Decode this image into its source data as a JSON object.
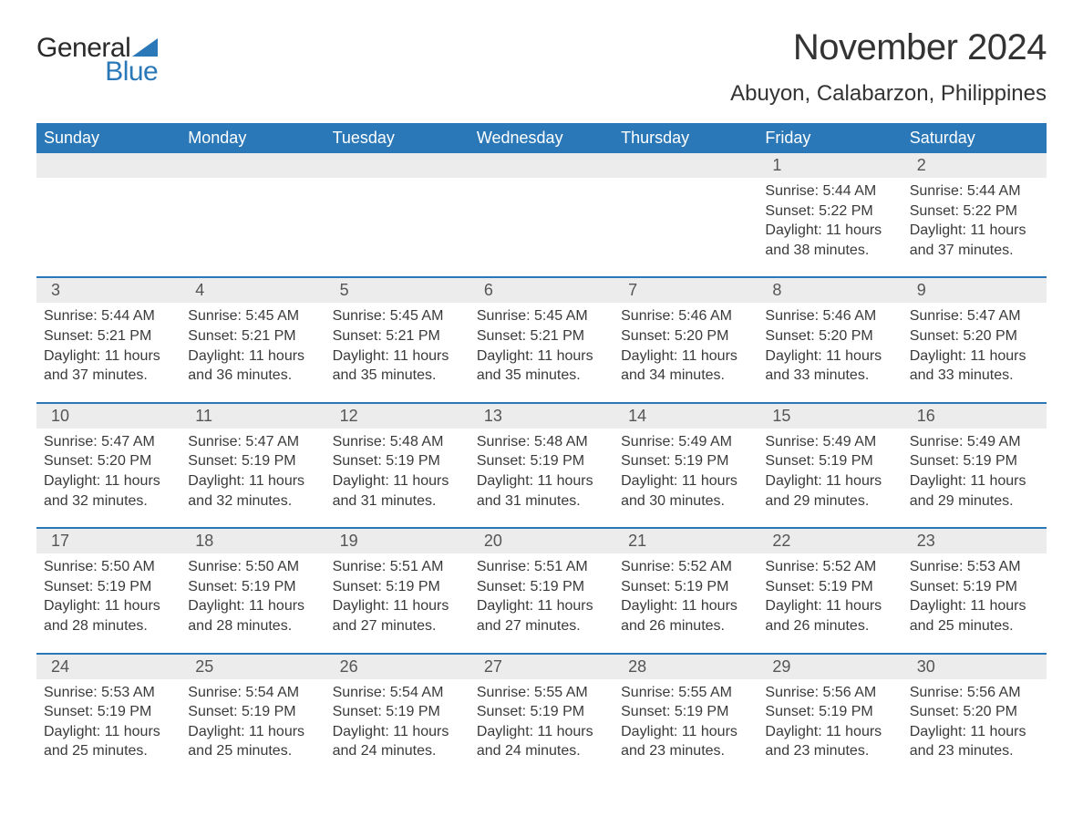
{
  "logo": {
    "text1": "General",
    "text2": "Blue",
    "sail_color": "#2a78b8"
  },
  "title": "November 2024",
  "location": "Abuyon, Calabarzon, Philippines",
  "colors": {
    "header_bg": "#2a78b8",
    "header_text": "#ffffff",
    "daynum_bg": "#ececec",
    "week_border": "#2a78b8",
    "body_text": "#3a3a3a"
  },
  "day_headers": [
    "Sunday",
    "Monday",
    "Tuesday",
    "Wednesday",
    "Thursday",
    "Friday",
    "Saturday"
  ],
  "weeks": [
    [
      {
        "empty": true
      },
      {
        "empty": true
      },
      {
        "empty": true
      },
      {
        "empty": true
      },
      {
        "empty": true
      },
      {
        "n": "1",
        "sunrise": "5:44 AM",
        "sunset": "5:22 PM",
        "daylight": "11 hours and 38 minutes."
      },
      {
        "n": "2",
        "sunrise": "5:44 AM",
        "sunset": "5:22 PM",
        "daylight": "11 hours and 37 minutes."
      }
    ],
    [
      {
        "n": "3",
        "sunrise": "5:44 AM",
        "sunset": "5:21 PM",
        "daylight": "11 hours and 37 minutes."
      },
      {
        "n": "4",
        "sunrise": "5:45 AM",
        "sunset": "5:21 PM",
        "daylight": "11 hours and 36 minutes."
      },
      {
        "n": "5",
        "sunrise": "5:45 AM",
        "sunset": "5:21 PM",
        "daylight": "11 hours and 35 minutes."
      },
      {
        "n": "6",
        "sunrise": "5:45 AM",
        "sunset": "5:21 PM",
        "daylight": "11 hours and 35 minutes."
      },
      {
        "n": "7",
        "sunrise": "5:46 AM",
        "sunset": "5:20 PM",
        "daylight": "11 hours and 34 minutes."
      },
      {
        "n": "8",
        "sunrise": "5:46 AM",
        "sunset": "5:20 PM",
        "daylight": "11 hours and 33 minutes."
      },
      {
        "n": "9",
        "sunrise": "5:47 AM",
        "sunset": "5:20 PM",
        "daylight": "11 hours and 33 minutes."
      }
    ],
    [
      {
        "n": "10",
        "sunrise": "5:47 AM",
        "sunset": "5:20 PM",
        "daylight": "11 hours and 32 minutes."
      },
      {
        "n": "11",
        "sunrise": "5:47 AM",
        "sunset": "5:19 PM",
        "daylight": "11 hours and 32 minutes."
      },
      {
        "n": "12",
        "sunrise": "5:48 AM",
        "sunset": "5:19 PM",
        "daylight": "11 hours and 31 minutes."
      },
      {
        "n": "13",
        "sunrise": "5:48 AM",
        "sunset": "5:19 PM",
        "daylight": "11 hours and 31 minutes."
      },
      {
        "n": "14",
        "sunrise": "5:49 AM",
        "sunset": "5:19 PM",
        "daylight": "11 hours and 30 minutes."
      },
      {
        "n": "15",
        "sunrise": "5:49 AM",
        "sunset": "5:19 PM",
        "daylight": "11 hours and 29 minutes."
      },
      {
        "n": "16",
        "sunrise": "5:49 AM",
        "sunset": "5:19 PM",
        "daylight": "11 hours and 29 minutes."
      }
    ],
    [
      {
        "n": "17",
        "sunrise": "5:50 AM",
        "sunset": "5:19 PM",
        "daylight": "11 hours and 28 minutes."
      },
      {
        "n": "18",
        "sunrise": "5:50 AM",
        "sunset": "5:19 PM",
        "daylight": "11 hours and 28 minutes."
      },
      {
        "n": "19",
        "sunrise": "5:51 AM",
        "sunset": "5:19 PM",
        "daylight": "11 hours and 27 minutes."
      },
      {
        "n": "20",
        "sunrise": "5:51 AM",
        "sunset": "5:19 PM",
        "daylight": "11 hours and 27 minutes."
      },
      {
        "n": "21",
        "sunrise": "5:52 AM",
        "sunset": "5:19 PM",
        "daylight": "11 hours and 26 minutes."
      },
      {
        "n": "22",
        "sunrise": "5:52 AM",
        "sunset": "5:19 PM",
        "daylight": "11 hours and 26 minutes."
      },
      {
        "n": "23",
        "sunrise": "5:53 AM",
        "sunset": "5:19 PM",
        "daylight": "11 hours and 25 minutes."
      }
    ],
    [
      {
        "n": "24",
        "sunrise": "5:53 AM",
        "sunset": "5:19 PM",
        "daylight": "11 hours and 25 minutes."
      },
      {
        "n": "25",
        "sunrise": "5:54 AM",
        "sunset": "5:19 PM",
        "daylight": "11 hours and 25 minutes."
      },
      {
        "n": "26",
        "sunrise": "5:54 AM",
        "sunset": "5:19 PM",
        "daylight": "11 hours and 24 minutes."
      },
      {
        "n": "27",
        "sunrise": "5:55 AM",
        "sunset": "5:19 PM",
        "daylight": "11 hours and 24 minutes."
      },
      {
        "n": "28",
        "sunrise": "5:55 AM",
        "sunset": "5:19 PM",
        "daylight": "11 hours and 23 minutes."
      },
      {
        "n": "29",
        "sunrise": "5:56 AM",
        "sunset": "5:19 PM",
        "daylight": "11 hours and 23 minutes."
      },
      {
        "n": "30",
        "sunrise": "5:56 AM",
        "sunset": "5:20 PM",
        "daylight": "11 hours and 23 minutes."
      }
    ]
  ],
  "labels": {
    "sunrise": "Sunrise:",
    "sunset": "Sunset:",
    "daylight": "Daylight:"
  }
}
